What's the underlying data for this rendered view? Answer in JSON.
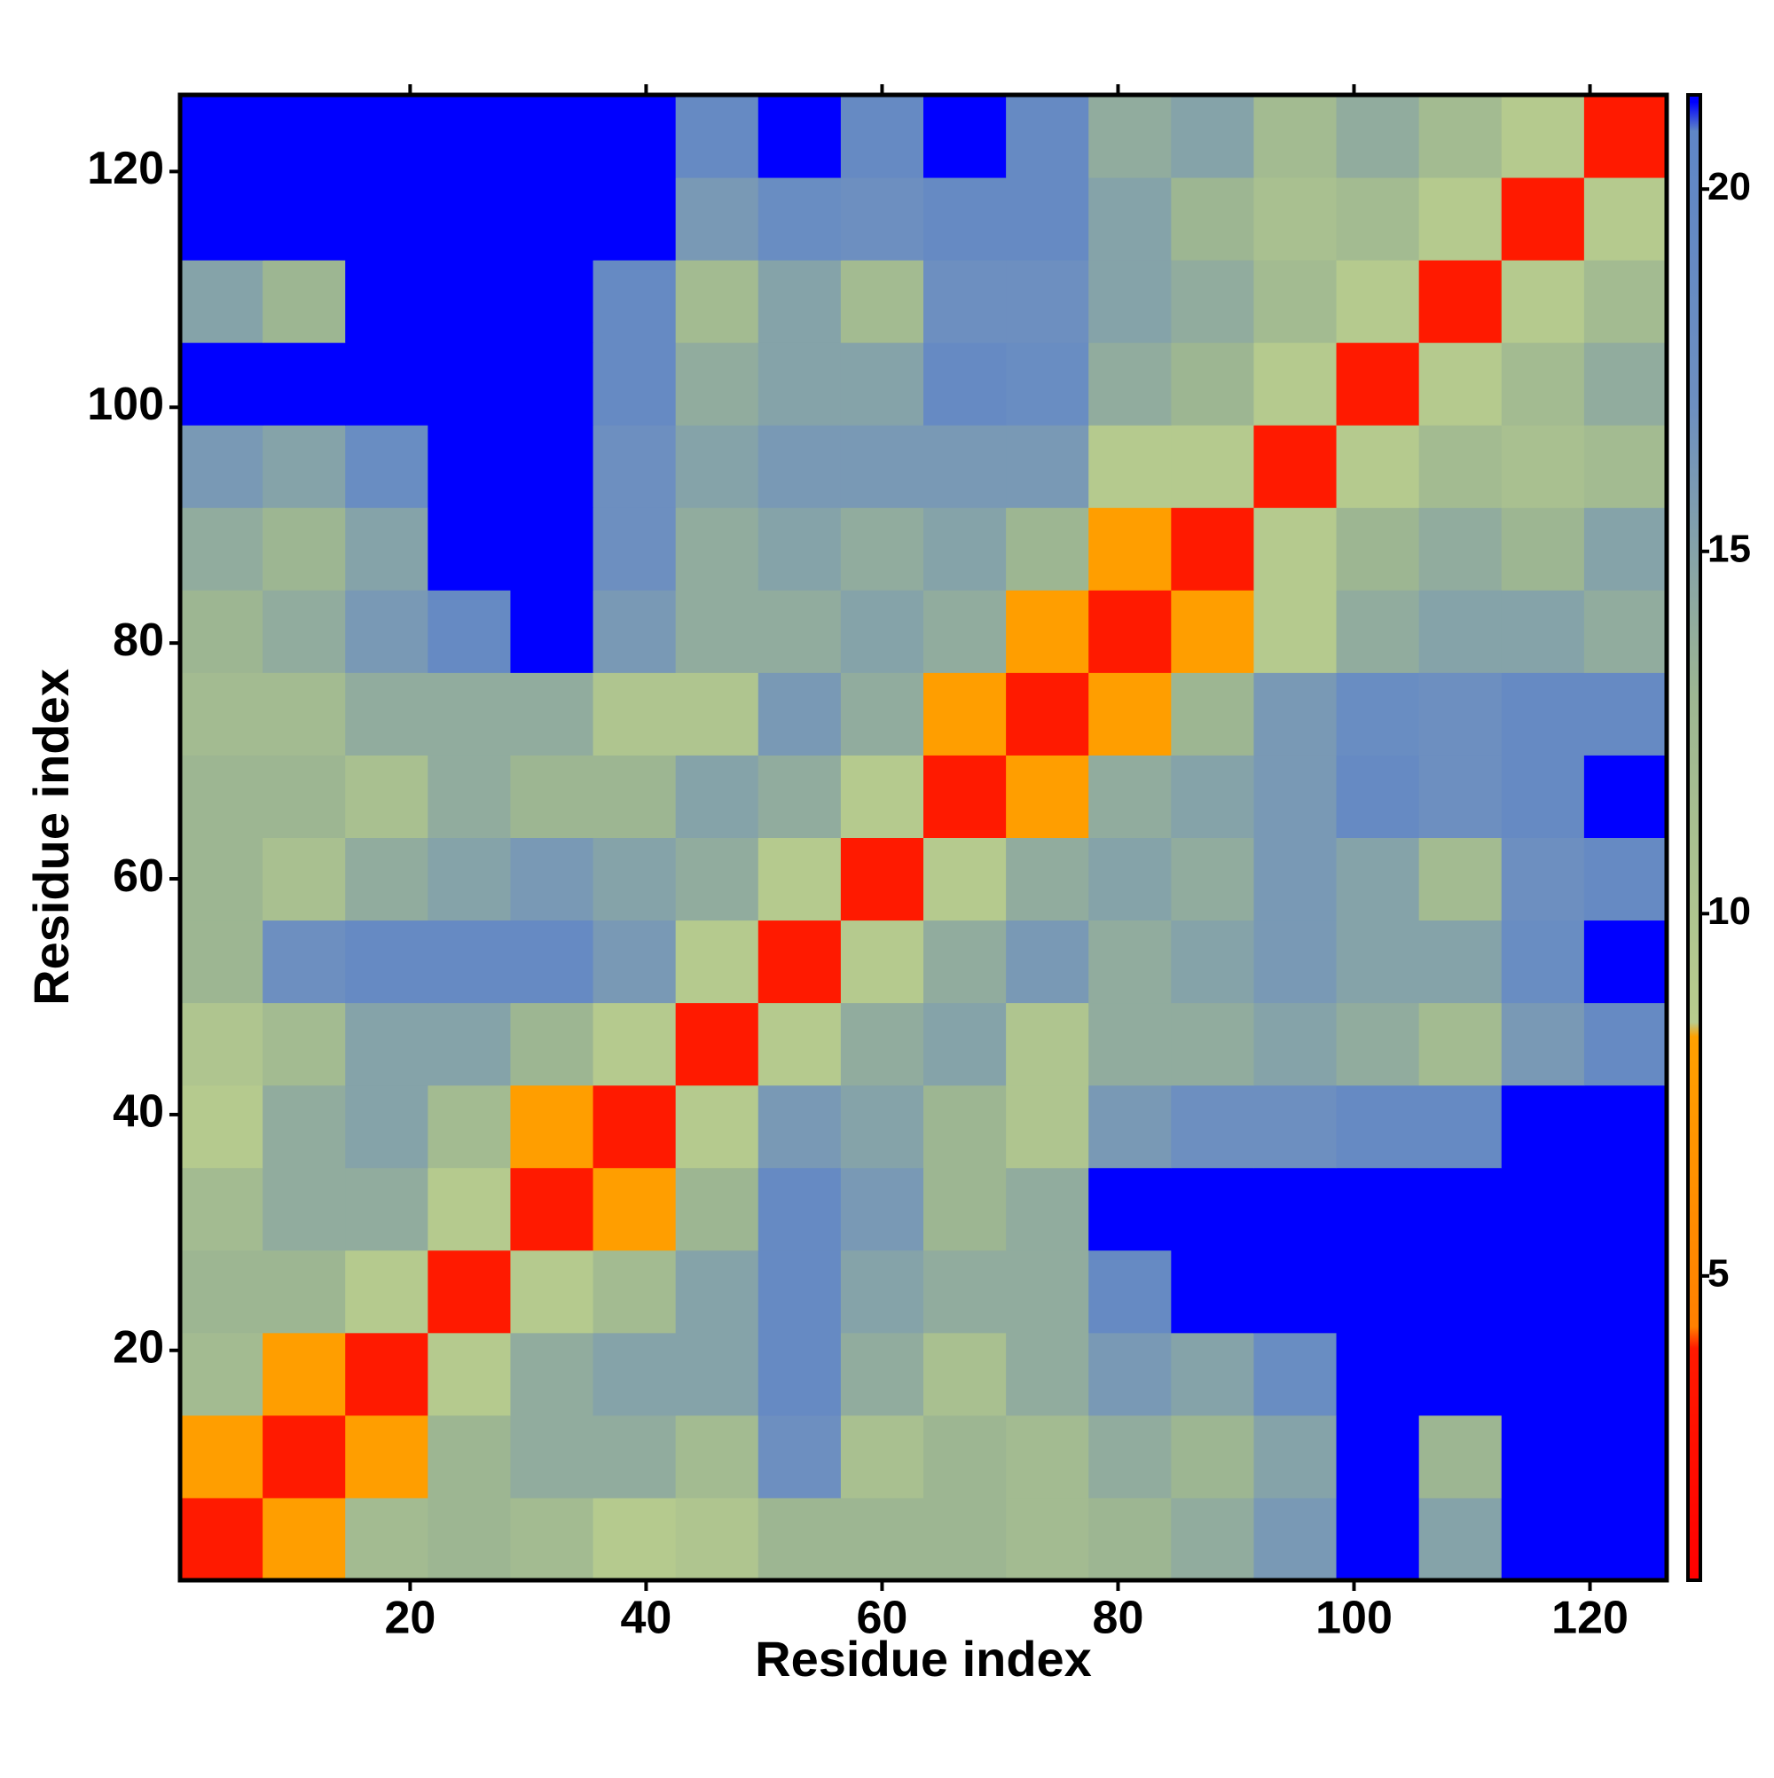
{
  "chart_data": {
    "type": "heatmap",
    "xlabel": "Residue index",
    "ylabel": "Residue index",
    "xlim": [
      0.5,
      126.5
    ],
    "ylim": [
      0.5,
      126.5
    ],
    "xticks": [
      20,
      40,
      60,
      80,
      100,
      120
    ],
    "yticks": [
      20,
      40,
      60,
      80,
      100,
      120
    ],
    "xbins": [
      0.5,
      7.5,
      14.5,
      21.5,
      28.5,
      35.5,
      42.5,
      49.5,
      56.5,
      63.5,
      70.5,
      77.5,
      84.5,
      91.5,
      98.5,
      105.5,
      112.5,
      119.5,
      126.5
    ],
    "ybins": [
      0.5,
      7.5,
      14.5,
      21.5,
      28.5,
      35.5,
      42.5,
      49.5,
      56.5,
      63.5,
      70.5,
      77.5,
      84.5,
      91.5,
      98.5,
      105.5,
      112.5,
      119.5,
      126.5
    ],
    "z": [
      [
        4,
        8,
        12,
        13,
        12,
        9,
        10,
        13,
        13,
        13,
        12,
        13,
        14,
        16,
        21.3,
        15,
        21.3,
        21.3
      ],
      [
        8,
        4,
        8,
        13,
        14,
        14,
        12,
        17,
        11,
        13,
        12,
        14,
        13,
        15,
        21.3,
        13,
        21.3,
        21.3
      ],
      [
        12,
        8,
        4,
        9,
        14,
        15,
        15,
        19,
        14,
        11,
        14,
        16,
        15,
        18,
        21.3,
        21.3,
        21.3,
        21.3
      ],
      [
        13,
        13,
        9,
        4,
        9,
        12,
        15,
        19,
        15,
        14,
        14,
        19,
        21.3,
        21.3,
        21.3,
        21.3,
        21.3,
        21.3
      ],
      [
        12,
        14,
        14,
        9,
        4,
        8,
        13,
        19,
        16,
        13,
        14,
        21.3,
        21.3,
        21.3,
        21.3,
        21.3,
        21.3,
        21.3
      ],
      [
        9,
        14,
        15,
        12,
        8,
        4,
        9,
        16,
        15,
        13,
        10,
        16,
        17,
        17,
        19,
        19,
        21.3,
        21.3
      ],
      [
        10,
        12,
        15,
        15,
        13,
        9,
        4,
        9,
        14,
        15,
        10,
        14,
        14,
        15,
        14,
        12,
        16,
        19
      ],
      [
        13,
        17,
        19,
        19,
        19,
        16,
        9,
        4,
        9,
        14,
        16,
        14,
        15,
        16,
        15,
        15,
        18,
        21.3
      ],
      [
        13,
        11,
        14,
        15,
        16,
        15,
        14,
        9,
        4,
        9,
        14,
        15,
        14,
        16,
        15,
        12,
        17,
        19
      ],
      [
        13,
        13,
        11,
        14,
        13,
        13,
        15,
        14,
        9,
        4,
        8,
        14,
        15,
        16,
        19,
        17,
        19,
        21.3
      ],
      [
        12,
        12,
        14,
        14,
        14,
        10,
        10,
        16,
        14,
        8,
        4,
        8,
        13,
        16,
        18,
        17,
        19,
        19
      ],
      [
        13,
        14,
        16,
        19,
        21.3,
        16,
        14,
        14,
        15,
        14,
        8,
        4,
        8,
        9,
        14,
        15,
        15,
        14
      ],
      [
        14,
        13,
        15,
        21.3,
        21.3,
        17,
        14,
        15,
        14,
        15,
        13,
        8,
        4,
        9,
        13,
        14,
        13,
        15
      ],
      [
        16,
        15,
        18,
        21.3,
        21.3,
        17,
        15,
        16,
        16,
        16,
        16,
        9,
        9,
        4,
        9,
        12,
        11,
        12
      ],
      [
        21.3,
        21.3,
        21.3,
        21.3,
        21.3,
        19,
        14,
        15,
        15,
        19,
        18,
        14,
        13,
        9,
        4,
        9,
        12,
        14
      ],
      [
        15,
        13,
        21.3,
        21.3,
        21.3,
        19,
        12,
        15,
        12,
        17,
        17,
        15,
        14,
        12,
        9,
        4,
        9,
        12
      ],
      [
        21.3,
        21.3,
        21.3,
        21.3,
        21.3,
        21.3,
        16,
        18,
        17,
        19,
        19,
        15,
        13,
        11,
        12,
        9,
        4,
        9
      ],
      [
        21.3,
        21.3,
        21.3,
        21.3,
        21.3,
        21.3,
        19,
        21.3,
        19,
        21.3,
        19,
        14,
        15,
        12,
        14,
        12,
        9,
        4
      ]
    ],
    "zlim": [
      0.8,
      21.3
    ],
    "zticks": [
      5,
      10,
      15,
      20
    ],
    "colorscale": [
      [
        0.8,
        "#ff0000"
      ],
      [
        4.0,
        "#ff1a00"
      ],
      [
        4.3,
        "#ff8000"
      ],
      [
        8.3,
        "#ffa000"
      ],
      [
        8.5,
        "#b8cc8e"
      ],
      [
        13,
        "#9db692"
      ],
      [
        17,
        "#6d8fc0"
      ],
      [
        20.8,
        "#5f86c6"
      ],
      [
        21.2,
        "#0000ff"
      ]
    ]
  }
}
